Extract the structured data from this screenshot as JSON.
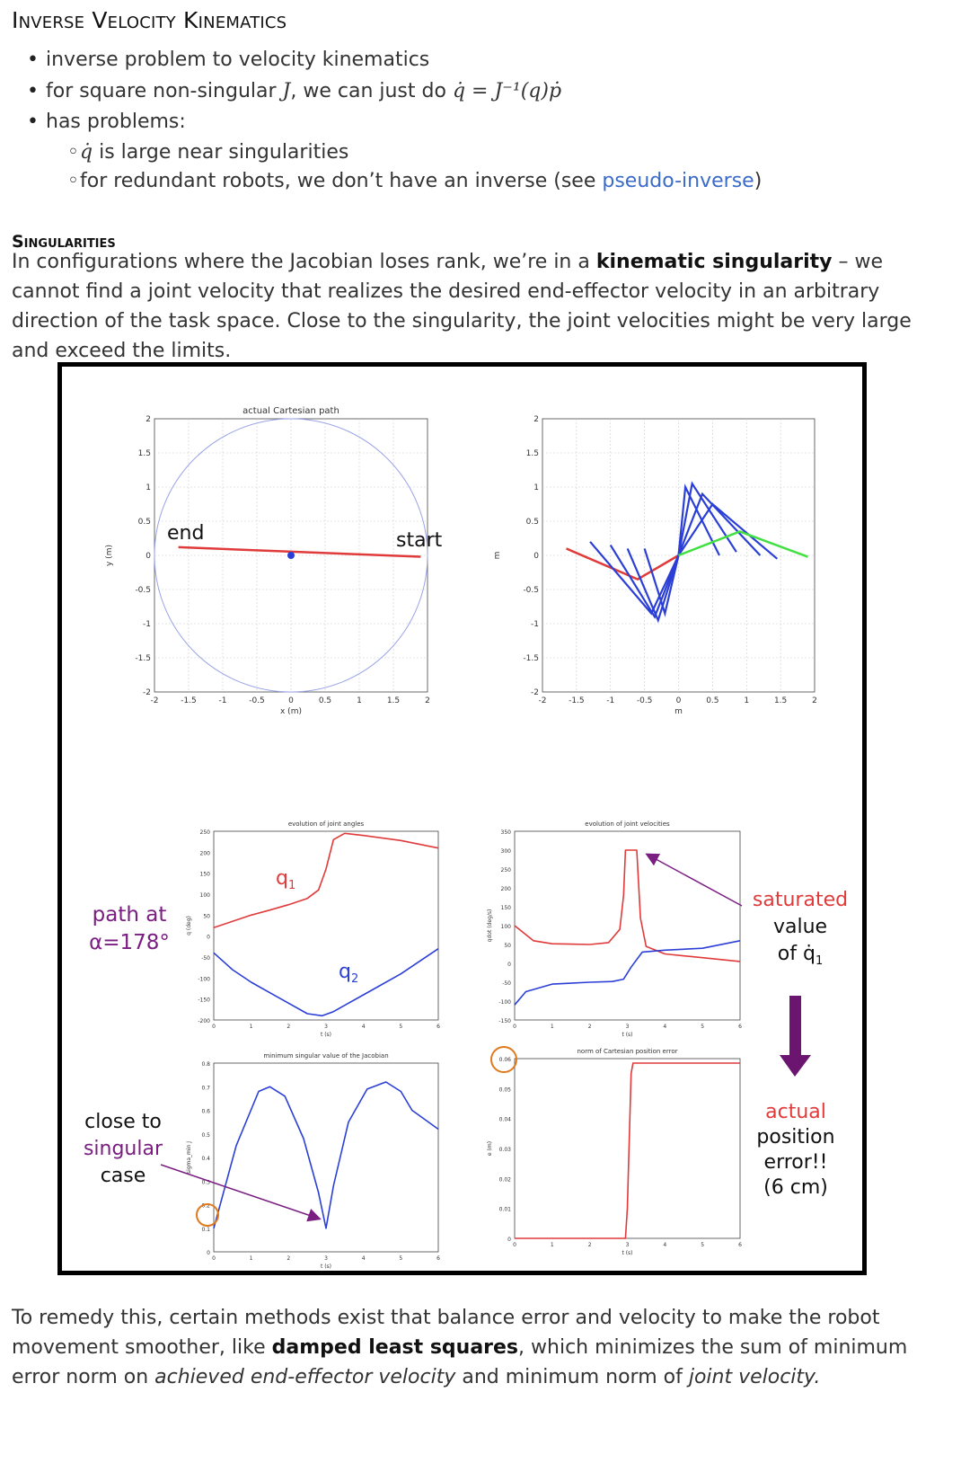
{
  "heading": "Inverse Velocity Kinematics",
  "bullets": {
    "b1": "inverse problem to velocity kinematics",
    "b2_prefix": "for square non-singular ",
    "b2_J": "J",
    "b2_mid": ", we can just do ",
    "b2_formula": "q̇ = J⁻¹(q)ṗ",
    "b3": "has problems:",
    "sub1_qdot": "q̇",
    "sub1_text": " is large near singularities",
    "sub2_prefix": "for redundant robots, we don’t have an inverse (see ",
    "sub2_link": "pseudo-inverse",
    "sub2_suffix": ")"
  },
  "section": {
    "title": "Singularities",
    "p1_a": "In configurations where the Jacobian loses rank, we’re in a ",
    "p1_bold": "kinematic singularity",
    "p1_b": " – we cannot find a joint velocity that realizes the desired end-effector velocity in an arbitrary direction of the task space. Close to the singularity, the joint velocities might be very large and exceed the limits.",
    "p2_a": "To remedy this, certain methods exist that balance error and velocity to make the robot movement smoother, like ",
    "p2_bold": "damped least squares",
    "p2_b": ", which minimizes the sum of minimum error norm on ",
    "p2_i1": "achieved end-effector velocity",
    "p2_c": " and minimum norm of ",
    "p2_i2": "joint velocity."
  },
  "figure": {
    "annotations": {
      "path_at": "path at",
      "alpha": "α=178°",
      "saturated": "saturated",
      "value": "value",
      "of_q1": "of q̇",
      "q1_sub": "1",
      "close_to": "close to",
      "singular": "singular",
      "case": "case",
      "actual": "actual",
      "position": "position",
      "error": "error!!",
      "six_cm": "(6 cm)",
      "q1_label": "q",
      "q2_label": "q",
      "sub1": "1",
      "sub2": "2",
      "end_label": "end",
      "start_label": "start"
    },
    "colors": {
      "red": "#e03a3a",
      "blue": "#2b3fd6",
      "green": "#3fe03f",
      "purple": "#7a1e82",
      "orange": "#e07a1e"
    }
  },
  "chart_data": [
    {
      "type": "line",
      "title": "actual Cartesian path",
      "xlabel": "x (m)",
      "ylabel": "y (m)",
      "xlim": [
        -2,
        2
      ],
      "ylim": [
        -2,
        2
      ],
      "xticks": [
        "-2",
        "-1.5",
        "-1",
        "-0.5",
        "0",
        "0.5",
        "1",
        "1.5",
        "2"
      ],
      "yticks": [
        "2",
        "1.5",
        "1",
        "0.5",
        "0",
        "-0.5",
        "-1",
        "-1.5",
        "-2"
      ],
      "series": [
        {
          "kind": "circle",
          "center": [
            0,
            0
          ],
          "radius": 2
        },
        {
          "kind": "path",
          "x": [
            -1.65,
            1.9
          ],
          "y": [
            0.12,
            -0.02
          ]
        },
        {
          "kind": "point",
          "x": [
            0
          ],
          "y": [
            0
          ]
        }
      ]
    },
    {
      "type": "line",
      "title": "",
      "xlabel": "m",
      "ylabel": "m",
      "xlim": [
        -2,
        2
      ],
      "ylim": [
        -2,
        2
      ],
      "xticks": [
        "-2",
        "-1.5",
        "-1",
        "-0.5",
        "0",
        "0.5",
        "1",
        "1.5",
        "2"
      ],
      "yticks": [
        "2",
        "1.5",
        "1",
        "0.5",
        "0",
        "-0.5",
        "-1",
        "-1.5",
        "-2"
      ]
    },
    {
      "type": "line",
      "title": "evolution of joint angles",
      "xlabel": "t (s)",
      "ylabel": "q (deg)",
      "xlim": [
        0,
        6
      ],
      "ylim": [
        -200,
        250
      ],
      "xticks": [
        "0",
        "1",
        "2",
        "3",
        "4",
        "5",
        "6"
      ],
      "yticks": [
        "250",
        "200",
        "150",
        "100",
        "50",
        "0",
        "-50",
        "-100",
        "-150",
        "-200"
      ],
      "series": [
        {
          "name": "q1",
          "x": [
            0,
            0.5,
            1,
            1.5,
            2,
            2.5,
            2.8,
            3.0,
            3.2,
            3.5,
            4,
            5,
            6
          ],
          "y": [
            20,
            35,
            50,
            62,
            75,
            90,
            110,
            160,
            230,
            245,
            240,
            228,
            210
          ]
        },
        {
          "name": "q2",
          "x": [
            0,
            0.5,
            1,
            1.5,
            2,
            2.5,
            2.9,
            3.2,
            3.6,
            4,
            5,
            6
          ],
          "y": [
            -40,
            -80,
            -110,
            -135,
            -160,
            -185,
            -190,
            -180,
            -160,
            -140,
            -90,
            -30
          ]
        }
      ]
    },
    {
      "type": "line",
      "title": "evolution of joint velocities",
      "xlabel": "t (s)",
      "ylabel": "qdot (deg/s)",
      "xlim": [
        0,
        6
      ],
      "ylim": [
        -150,
        350
      ],
      "xticks": [
        "0",
        "1",
        "2",
        "3",
        "4",
        "5",
        "6"
      ],
      "yticks": [
        "350",
        "300",
        "250",
        "200",
        "150",
        "100",
        "50",
        "0",
        "-50",
        "-100",
        "-150"
      ],
      "series": [
        {
          "name": "q1dot",
          "x": [
            0,
            0.5,
            1,
            2,
            2.5,
            2.8,
            2.9,
            2.95,
            3.05,
            3.25,
            3.35,
            3.5,
            4,
            5,
            6
          ],
          "y": [
            100,
            60,
            52,
            50,
            55,
            90,
            180,
            300,
            300,
            300,
            120,
            45,
            25,
            15,
            5
          ]
        },
        {
          "name": "q2dot",
          "x": [
            0,
            0.3,
            1,
            2,
            2.6,
            2.9,
            3.1,
            3.4,
            4,
            5,
            6
          ],
          "y": [
            -110,
            -75,
            -55,
            -50,
            -48,
            -42,
            -10,
            30,
            35,
            40,
            60
          ]
        }
      ]
    },
    {
      "type": "line",
      "title": "minimum singular value of the Jacobian",
      "xlabel": "t (s)",
      "ylabel": "sigma_min J",
      "xlim": [
        0,
        6
      ],
      "ylim": [
        0,
        0.8
      ],
      "xticks": [
        "0",
        "1",
        "2",
        "3",
        "4",
        "5",
        "6"
      ],
      "yticks": [
        "0.8",
        "0.7",
        "0.6",
        "0.5",
        "0.4",
        "0.3",
        "0.2",
        "0.1",
        "0"
      ],
      "series": [
        {
          "name": "sigma_min",
          "x": [
            0,
            0.6,
            1.2,
            1.5,
            1.9,
            2.4,
            2.8,
            3.0,
            3.2,
            3.6,
            4.1,
            4.6,
            5,
            5.3,
            6
          ],
          "y": [
            0.1,
            0.45,
            0.68,
            0.7,
            0.66,
            0.48,
            0.25,
            0.1,
            0.28,
            0.55,
            0.69,
            0.72,
            0.68,
            0.6,
            0.52
          ]
        }
      ]
    },
    {
      "type": "line",
      "title": "norm of Cartesian position error",
      "xlabel": "t (s)",
      "ylabel": "e (m)",
      "xlim": [
        0,
        6
      ],
      "ylim": [
        0,
        0.06
      ],
      "xticks": [
        "0",
        "1",
        "2",
        "3",
        "4",
        "5",
        "6"
      ],
      "yticks": [
        "0.06",
        "0.05",
        "0.04",
        "0.03",
        "0.02",
        "0.01",
        "0"
      ],
      "series": [
        {
          "name": "error",
          "x": [
            0,
            2.95,
            3.0,
            3.1,
            3.15,
            6
          ],
          "y": [
            0,
            0,
            0.01,
            0.055,
            0.0585,
            0.0585
          ]
        }
      ]
    }
  ]
}
